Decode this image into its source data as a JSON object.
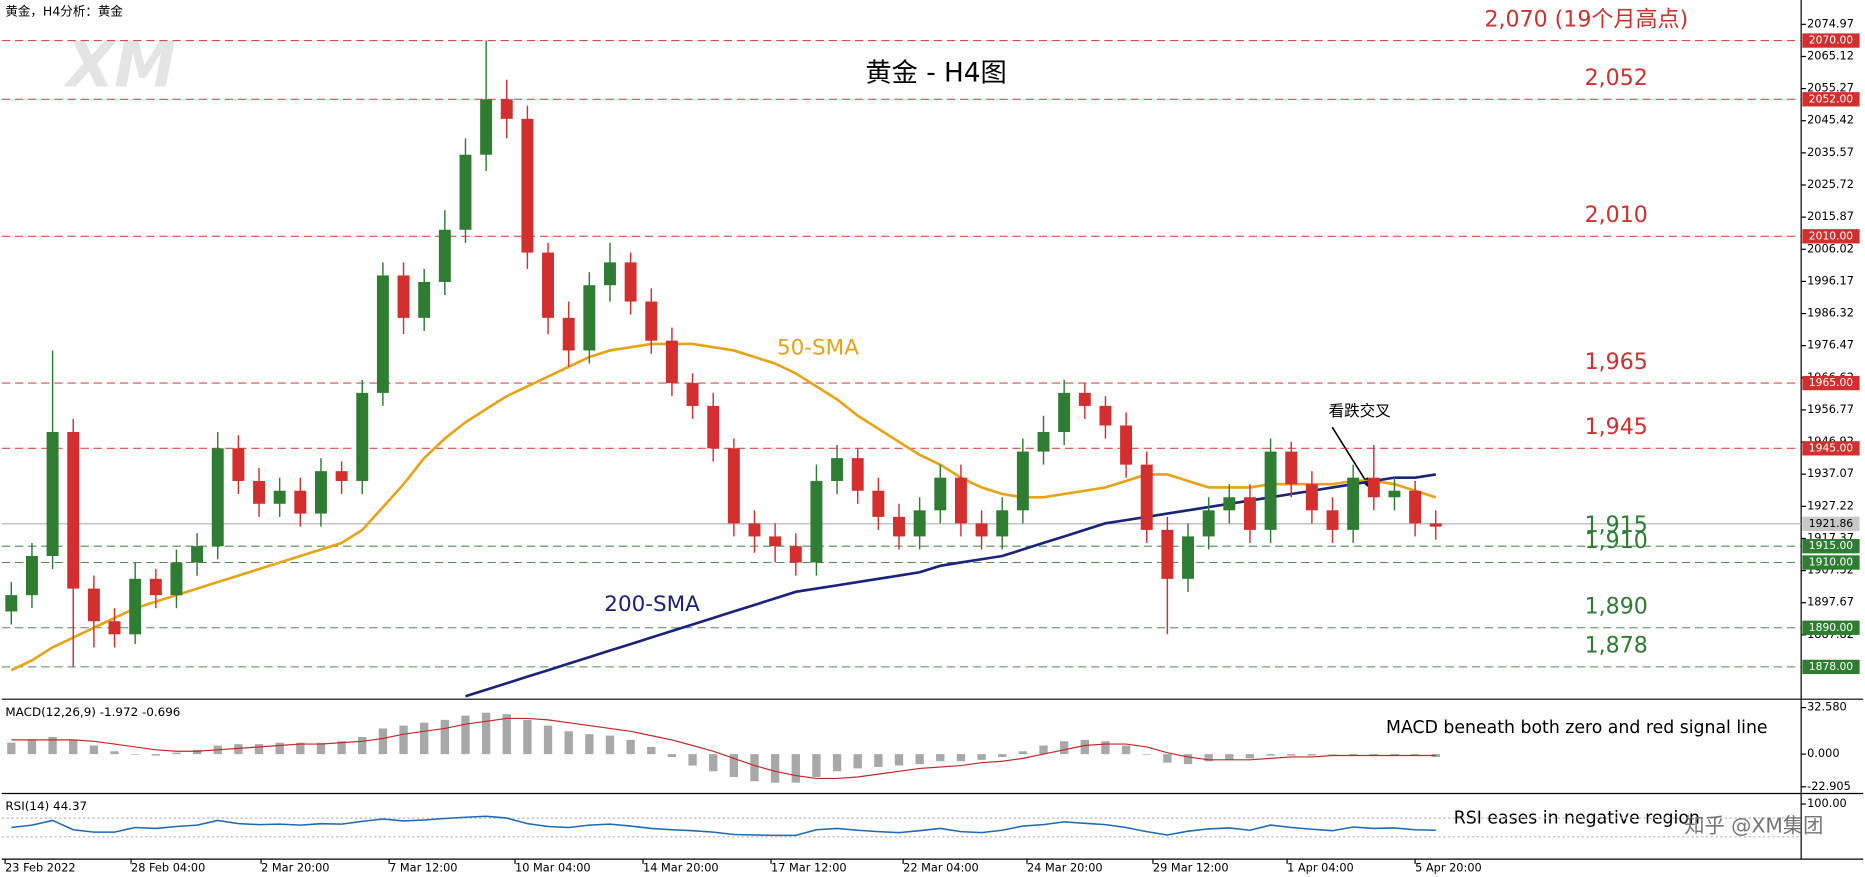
{
  "chart_data": [
    {
      "type": "candlestick",
      "header": "黄金，H4分析：黄金",
      "title": "黄金 - H4图",
      "watermark": "XM",
      "annotation": "看跌交叉",
      "xlim": [
        -0.46,
        86.7
      ],
      "xticks": [
        {
          "value": -0.3,
          "label": "23 Feb 2022"
        },
        {
          "value": 5.8,
          "label": "28 Feb 04:00"
        },
        {
          "value": 12.1,
          "label": "2 Mar 20:00"
        },
        {
          "value": 18.3,
          "label": "7 Mar 12:00"
        },
        {
          "value": 24.4,
          "label": "10 Mar 04:00"
        },
        {
          "value": 30.6,
          "label": "14 Mar 20:00"
        },
        {
          "value": 36.8,
          "label": "17 Mar 12:00"
        },
        {
          "value": 43.2,
          "label": "22 Mar 04:00"
        },
        {
          "value": 49.2,
          "label": "24 Mar 20:00"
        },
        {
          "value": 55.3,
          "label": "29 Mar 12:00"
        },
        {
          "value": 61.8,
          "label": "1 Apr 04:00"
        },
        {
          "value": 68,
          "label": "5 Apr 20:00"
        }
      ],
      "ylim": [
        1868.46,
        2080.97
      ],
      "yticks": [
        2074.97,
        2065.12,
        2055.27,
        2045.42,
        2035.57,
        2025.72,
        2015.87,
        2006.02,
        1996.17,
        1986.32,
        1976.47,
        1966.62,
        1956.77,
        1946.92,
        1937.07,
        1927.22,
        1917.37,
        1907.52,
        1897.67,
        1887.82
      ],
      "up_color": "#2e7d32",
      "down_color": "#d32f2f",
      "open": [
        1895,
        1900,
        1912,
        1950,
        1902,
        1892,
        1888,
        1905,
        1900,
        1910,
        1915,
        1945,
        1935,
        1928,
        1932,
        1925,
        1938,
        1935,
        1962,
        1998,
        1985,
        1996,
        2012,
        2035,
        2052,
        2046,
        2005,
        1985,
        1975,
        1995,
        2002,
        1990,
        1978,
        1965,
        1958,
        1945,
        1922,
        1918,
        1915,
        1910,
        1935,
        1942,
        1932,
        1924,
        1918,
        1926,
        1936,
        1922,
        1918,
        1926,
        1944,
        1950,
        1962,
        1958,
        1952,
        1940,
        1920,
        1905,
        1918,
        1926,
        1930,
        1920,
        1944,
        1934,
        1926,
        1920,
        1936,
        1930,
        1932,
        1922
      ],
      "high": [
        1904,
        1916,
        1975,
        1954,
        1906,
        1896,
        1910,
        1908,
        1914,
        1919,
        1950,
        1949,
        1939,
        1936,
        1936,
        1942,
        1941,
        1966,
        2002,
        2002,
        2000,
        2018,
        2040,
        2070,
        2058,
        2050,
        2008,
        1990,
        1999,
        2008,
        2005,
        1994,
        1982,
        1968,
        1962,
        1948,
        1926,
        1922,
        1919,
        1940,
        1946,
        1945,
        1936,
        1928,
        1930,
        1940,
        1940,
        1926,
        1930,
        1948,
        1955,
        1966,
        1965,
        1961,
        1956,
        1944,
        1924,
        1922,
        1930,
        1934,
        1934,
        1948,
        1947,
        1938,
        1930,
        1940,
        1946,
        1936,
        1935,
        1926
      ],
      "low": [
        1891,
        1896,
        1908,
        1878,
        1884,
        1884,
        1885,
        1896,
        1896,
        1906,
        1911,
        1931,
        1924,
        1924,
        1921,
        1921,
        1931,
        1931,
        1958,
        1980,
        1981,
        1992,
        2008,
        2030,
        2040,
        2000,
        1980,
        1970,
        1971,
        1990,
        1986,
        1974,
        1961,
        1954,
        1941,
        1918,
        1913,
        1910,
        1906,
        1906,
        1931,
        1928,
        1920,
        1914,
        1914,
        1922,
        1918,
        1914,
        1914,
        1922,
        1940,
        1946,
        1954,
        1948,
        1936,
        1916,
        1888,
        1901,
        1914,
        1922,
        1916,
        1916,
        1930,
        1922,
        1916,
        1916,
        1926,
        1926,
        1918,
        1917
      ],
      "close": [
        1900,
        1912,
        1950,
        1902,
        1892,
        1888,
        1905,
        1900,
        1910,
        1915,
        1945,
        1935,
        1928,
        1932,
        1925,
        1938,
        1935,
        1962,
        1998,
        1985,
        1996,
        2012,
        2035,
        2052,
        2046,
        2005,
        1985,
        1975,
        1995,
        2002,
        1990,
        1978,
        1965,
        1958,
        1945,
        1922,
        1918,
        1915,
        1910,
        1935,
        1942,
        1932,
        1924,
        1918,
        1926,
        1936,
        1922,
        1918,
        1926,
        1944,
        1950,
        1962,
        1958,
        1952,
        1940,
        1920,
        1905,
        1918,
        1926,
        1930,
        1920,
        1944,
        1934,
        1926,
        1920,
        1936,
        1930,
        1932,
        1922,
        1921
      ],
      "lines": [
        {
          "name": "50-SMA",
          "color": "#e8a317",
          "values": [
            1877,
            1880,
            1884,
            1887,
            1890,
            1893,
            1896,
            1898,
            1900,
            1902,
            1904,
            1906,
            1908,
            1910,
            1912,
            1914,
            1916,
            1920,
            1927,
            1934,
            1942,
            1948,
            1953,
            1957,
            1961,
            1964,
            1967,
            1970,
            1973,
            1975,
            1976,
            1977,
            1977,
            1977,
            1976,
            1975,
            1973,
            1971,
            1968,
            1964,
            1960,
            1955,
            1951,
            1947,
            1943,
            1940,
            1936,
            1933,
            1931,
            1930,
            1930,
            1931,
            1932,
            1933,
            1935,
            1937,
            1937,
            1935,
            1933,
            1933,
            1933,
            1934,
            1934,
            1934,
            1934,
            1935,
            1935,
            1934,
            1932,
            1930
          ]
        },
        {
          "name": "200-SMA",
          "color": "#1a237e",
          "values": [
            null,
            null,
            null,
            null,
            null,
            null,
            null,
            null,
            null,
            null,
            null,
            null,
            null,
            null,
            null,
            null,
            null,
            null,
            null,
            null,
            null,
            null,
            1869,
            1871,
            1873,
            1875,
            1877,
            1879,
            1881,
            1883,
            1885,
            1887,
            1889,
            1891,
            1893,
            1895,
            1897,
            1899,
            1901,
            1902,
            1903,
            1904,
            1905,
            1906,
            1907,
            1909,
            1910,
            1911,
            1912,
            1914,
            1916,
            1918,
            1920,
            1922,
            1923,
            1924,
            1925,
            1926,
            1927,
            1928,
            1929,
            1930,
            1931,
            1932,
            1933,
            1934,
            1935,
            1936,
            1936,
            1937
          ]
        }
      ],
      "levels": [
        {
          "value": 2070,
          "label": "2,070 (19个月高点)",
          "axis_label": "2070.00",
          "color": "#d32f2f"
        },
        {
          "value": 2052,
          "label": "2,052",
          "axis_label": "2052.00",
          "color": "#d32f2f"
        },
        {
          "value": 2010,
          "label": "2,010",
          "axis_label": "2010.00",
          "color": "#d32f2f"
        },
        {
          "value": 1965,
          "label": "1,965",
          "axis_label": "1965.00",
          "color": "#d32f2f"
        },
        {
          "value": 1945,
          "label": "1,945",
          "axis_label": "1945.00",
          "color": "#d32f2f"
        },
        {
          "value": 1915,
          "label": "1,915",
          "axis_label": "1915.00",
          "color": "#2e7d32"
        },
        {
          "value": 1910,
          "label": "1,910",
          "axis_label": "1910.00",
          "color": "#2e7d32"
        },
        {
          "value": 1890,
          "label": "1,890",
          "axis_label": "1890.00",
          "color": "#2e7d32"
        },
        {
          "value": 1878,
          "label": "1,878",
          "axis_label": "1878.00",
          "color": "#2e7d32"
        }
      ],
      "last_price": 1921.86
    },
    {
      "type": "macd",
      "label": "MACD(12,26,9) -1.972 -0.696",
      "note": "MACD beneath both zero and red signal line",
      "color": "#a8a8a8",
      "ylim": [
        -25.9,
        36.8
      ],
      "yticks": [
        {
          "value": 32.58,
          "label": "32.580"
        },
        {
          "value": 0,
          "label": "0.000"
        },
        -22.905
      ],
      "values": [
        8,
        10,
        12,
        10,
        6,
        2,
        0,
        -1,
        1,
        3,
        6,
        7,
        7,
        8,
        8,
        8,
        9,
        12,
        18,
        20,
        22,
        24,
        27,
        29,
        28,
        24,
        20,
        16,
        14,
        13,
        10,
        5,
        -2,
        -8,
        -12,
        -16,
        -19,
        -20,
        -20,
        -16,
        -12,
        -10,
        -9,
        -8,
        -7,
        -5,
        -5,
        -4,
        -2,
        2,
        6,
        9,
        10,
        9,
        6,
        0,
        -6,
        -7,
        -5,
        -4,
        -3,
        -1,
        -1,
        -1,
        0,
        -1,
        -1,
        -1,
        -1,
        -2
      ],
      "signal": {
        "color": "#c62828",
        "values": [
          10,
          10,
          10,
          10,
          9,
          7,
          5,
          3,
          2,
          2,
          3,
          4,
          5,
          6,
          7,
          7,
          8,
          9,
          11,
          14,
          16,
          18,
          21,
          23,
          25,
          25,
          24,
          22,
          20,
          18,
          16,
          13,
          10,
          6,
          2,
          -3,
          -8,
          -12,
          -15,
          -17,
          -17,
          -16,
          -14,
          -12,
          -10,
          -9,
          -8,
          -6,
          -5,
          -3,
          0,
          3,
          6,
          7,
          7,
          5,
          1,
          -2,
          -4,
          -4,
          -4,
          -3,
          -2,
          -2,
          -1,
          -1,
          -1,
          -1,
          -1,
          -1
        ]
      }
    },
    {
      "type": "line",
      "label": "RSI(14) 44.37",
      "note": "RSI eases in negative region",
      "watermark": "知乎 @XM集团",
      "color": "#1e6bb8",
      "ylim": [
        -12.5,
        117.5
      ],
      "yticks": [
        {
          "value": 100,
          "label": "100.00"
        }
      ],
      "levels": [
        70,
        30
      ],
      "values": [
        50,
        55,
        65,
        45,
        40,
        40,
        50,
        48,
        52,
        55,
        65,
        58,
        56,
        57,
        55,
        58,
        57,
        63,
        68,
        64,
        66,
        69,
        72,
        74,
        70,
        58,
        52,
        50,
        55,
        57,
        53,
        48,
        45,
        43,
        40,
        35,
        34,
        33,
        33,
        45,
        48,
        44,
        41,
        39,
        43,
        48,
        41,
        39,
        44,
        53,
        56,
        62,
        59,
        56,
        50,
        41,
        34,
        42,
        47,
        49,
        44,
        55,
        50,
        46,
        43,
        51,
        48,
        49,
        45,
        44
      ]
    }
  ]
}
